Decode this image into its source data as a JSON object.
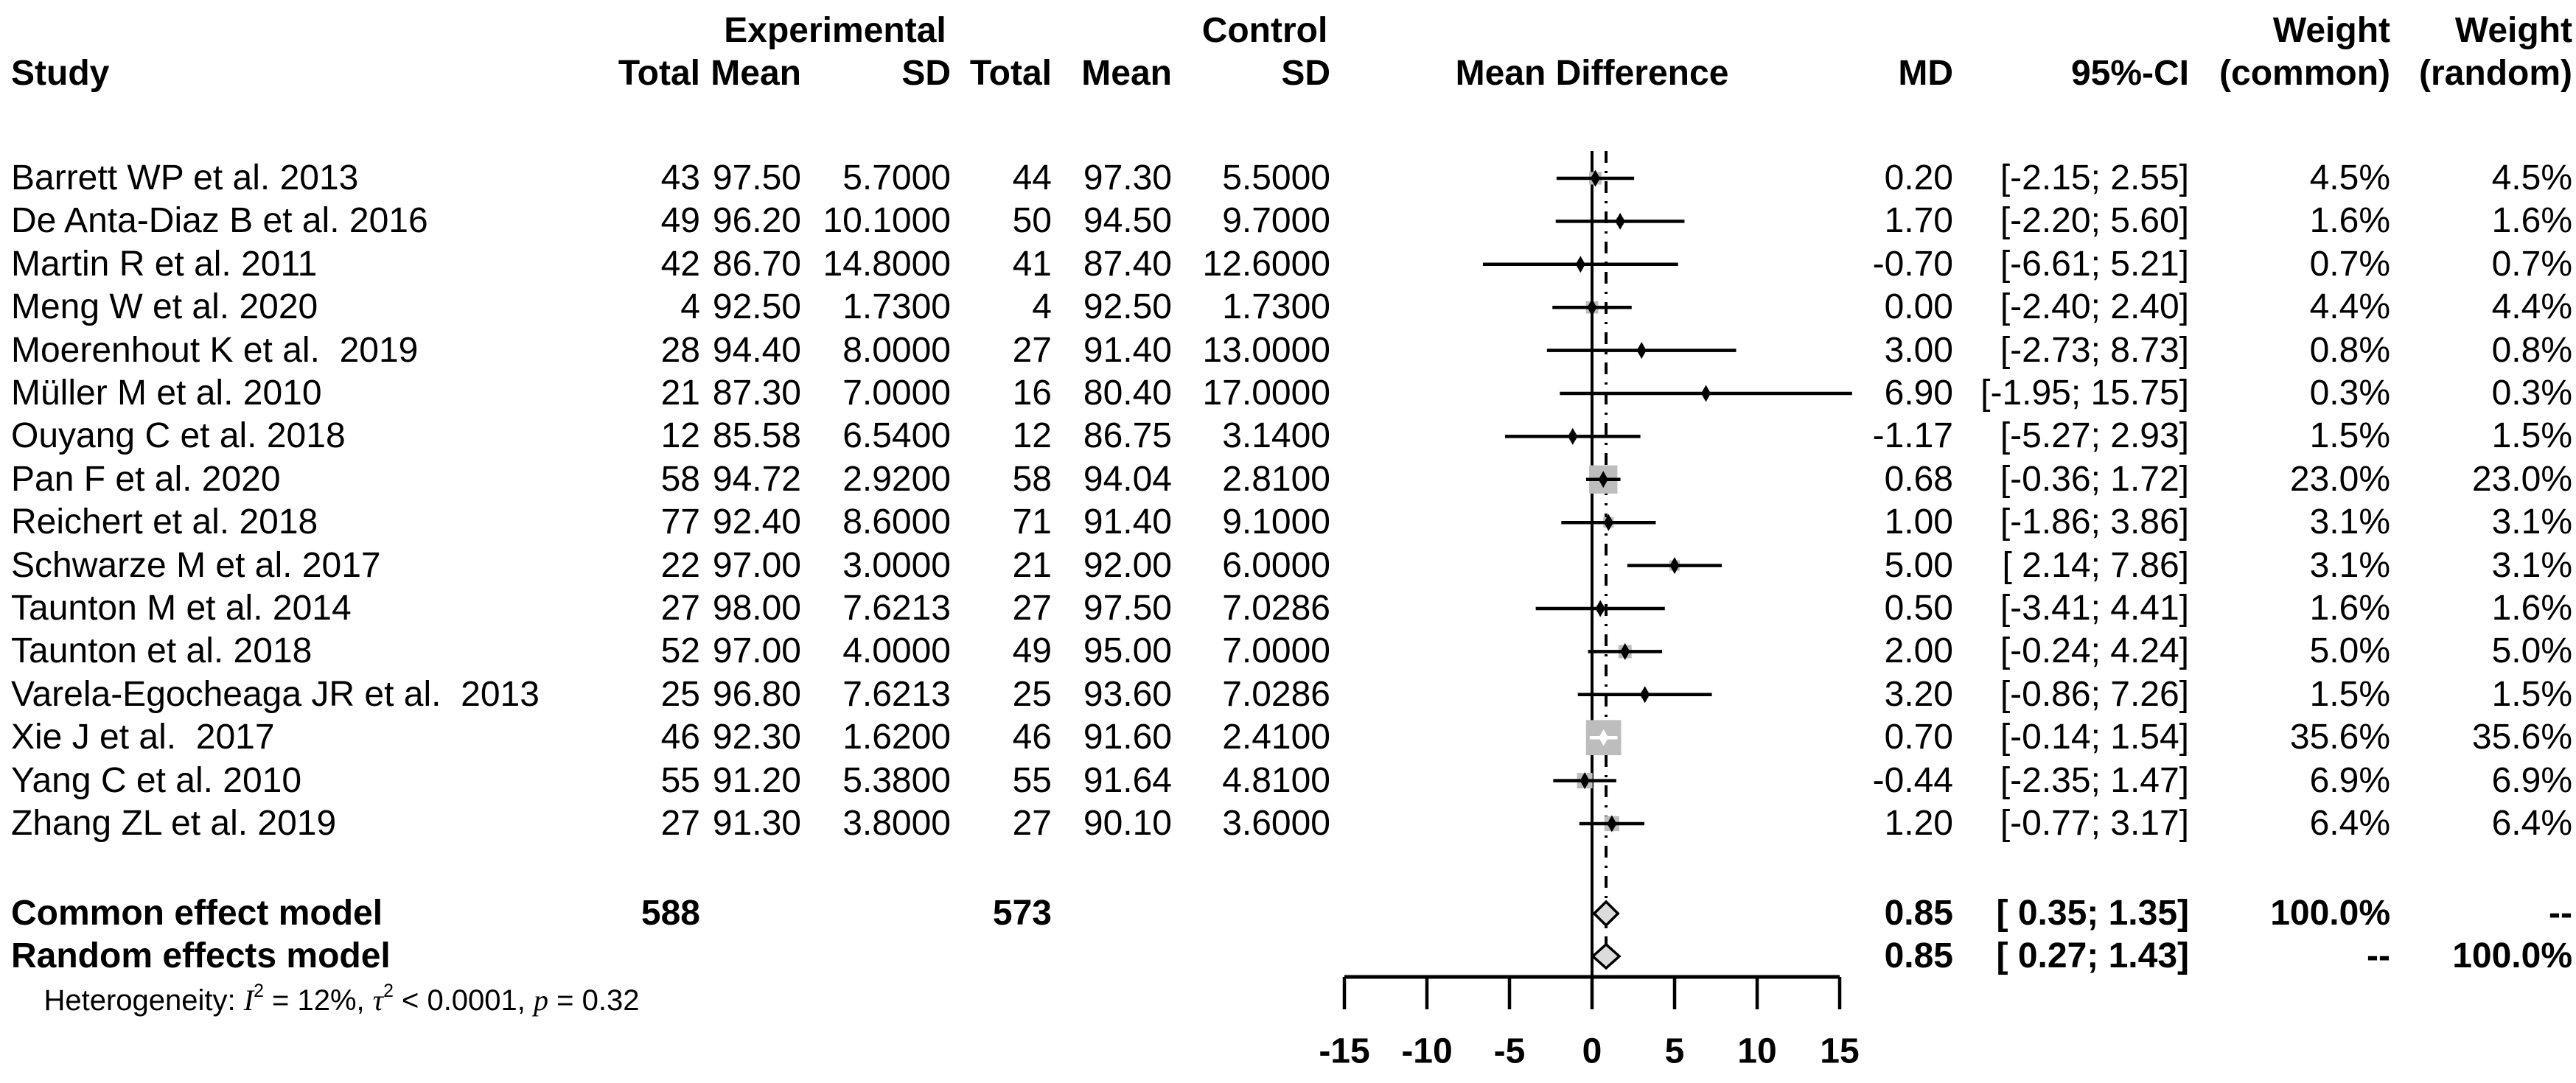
{
  "headers": {
    "study": "Study",
    "experimental": "Experimental",
    "control": "Control",
    "exp_total": "Total",
    "exp_mean": "Mean",
    "exp_sd": "SD",
    "ctrl_total": "Total",
    "ctrl_mean": "Mean",
    "ctrl_sd": "SD",
    "mean_difference": "Mean Difference",
    "md": "MD",
    "ci": "95%-CI",
    "weight_common": "Weight",
    "weight_common_sub": "(common)",
    "weight_random": "Weight",
    "weight_random_sub": "(random)"
  },
  "chart_data": {
    "type": "forest",
    "effect_measure": "Mean Difference",
    "x_axis": {
      "range": [
        -15,
        15
      ],
      "ticks": [
        -15,
        -10,
        -5,
        0,
        5,
        10,
        15
      ],
      "ref_line": 0,
      "overall_line": 0.85
    },
    "studies": [
      {
        "name": "Barrett WP et al. 2013",
        "exp_total": "43",
        "exp_mean": "97.50",
        "exp_sd": "5.7000",
        "ctrl_total": "44",
        "ctrl_mean": "97.30",
        "ctrl_sd": "5.5000",
        "md": 0.2,
        "md_text": "0.20",
        "ci_lo": -2.15,
        "ci_hi": 2.55,
        "ci_text": "[-2.15; 2.55]",
        "w_common": "4.5%",
        "w_random": "4.5%",
        "weight_pct": 4.5
      },
      {
        "name": "De Anta-Diaz B et al. 2016",
        "exp_total": "49",
        "exp_mean": "96.20",
        "exp_sd": "10.1000",
        "ctrl_total": "50",
        "ctrl_mean": "94.50",
        "ctrl_sd": "9.7000",
        "md": 1.7,
        "md_text": "1.70",
        "ci_lo": -2.2,
        "ci_hi": 5.6,
        "ci_text": "[-2.20; 5.60]",
        "w_common": "1.6%",
        "w_random": "1.6%",
        "weight_pct": 1.6
      },
      {
        "name": "Martin R et al. 2011",
        "exp_total": "42",
        "exp_mean": "86.70",
        "exp_sd": "14.8000",
        "ctrl_total": "41",
        "ctrl_mean": "87.40",
        "ctrl_sd": "12.6000",
        "md": -0.7,
        "md_text": "-0.70",
        "ci_lo": -6.61,
        "ci_hi": 5.21,
        "ci_text": "[-6.61; 5.21]",
        "w_common": "0.7%",
        "w_random": "0.7%",
        "weight_pct": 0.7
      },
      {
        "name": "Meng W et al. 2020",
        "exp_total": "4",
        "exp_mean": "92.50",
        "exp_sd": "1.7300",
        "ctrl_total": "4",
        "ctrl_mean": "92.50",
        "ctrl_sd": "1.7300",
        "md": 0.0,
        "md_text": "0.00",
        "ci_lo": -2.4,
        "ci_hi": 2.4,
        "ci_text": "[-2.40; 2.40]",
        "w_common": "4.4%",
        "w_random": "4.4%",
        "weight_pct": 4.4
      },
      {
        "name": "Moerenhout K et al.  2019",
        "exp_total": "28",
        "exp_mean": "94.40",
        "exp_sd": "8.0000",
        "ctrl_total": "27",
        "ctrl_mean": "91.40",
        "ctrl_sd": "13.0000",
        "md": 3.0,
        "md_text": "3.00",
        "ci_lo": -2.73,
        "ci_hi": 8.73,
        "ci_text": "[-2.73; 8.73]",
        "w_common": "0.8%",
        "w_random": "0.8%",
        "weight_pct": 0.8
      },
      {
        "name": "Müller M et al. 2010",
        "exp_total": "21",
        "exp_mean": "87.30",
        "exp_sd": "7.0000",
        "ctrl_total": "16",
        "ctrl_mean": "80.40",
        "ctrl_sd": "17.0000",
        "md": 6.9,
        "md_text": "6.90",
        "ci_lo": -1.95,
        "ci_hi": 15.75,
        "ci_text": "[-1.95; 15.75]",
        "w_common": "0.3%",
        "w_random": "0.3%",
        "weight_pct": 0.3
      },
      {
        "name": "Ouyang C et al. 2018",
        "exp_total": "12",
        "exp_mean": "85.58",
        "exp_sd": "6.5400",
        "ctrl_total": "12",
        "ctrl_mean": "86.75",
        "ctrl_sd": "3.1400",
        "md": -1.17,
        "md_text": "-1.17",
        "ci_lo": -5.27,
        "ci_hi": 2.93,
        "ci_text": "[-5.27; 2.93]",
        "w_common": "1.5%",
        "w_random": "1.5%",
        "weight_pct": 1.5
      },
      {
        "name": "Pan F et al. 2020",
        "exp_total": "58",
        "exp_mean": "94.72",
        "exp_sd": "2.9200",
        "ctrl_total": "58",
        "ctrl_mean": "94.04",
        "ctrl_sd": "2.8100",
        "md": 0.68,
        "md_text": "0.68",
        "ci_lo": -0.36,
        "ci_hi": 1.72,
        "ci_text": "[-0.36; 1.72]",
        "w_common": "23.0%",
        "w_random": "23.0%",
        "weight_pct": 23.0
      },
      {
        "name": "Reichert et al. 2018",
        "exp_total": "77",
        "exp_mean": "92.40",
        "exp_sd": "8.6000",
        "ctrl_total": "71",
        "ctrl_mean": "91.40",
        "ctrl_sd": "9.1000",
        "md": 1.0,
        "md_text": "1.00",
        "ci_lo": -1.86,
        "ci_hi": 3.86,
        "ci_text": "[-1.86; 3.86]",
        "w_common": "3.1%",
        "w_random": "3.1%",
        "weight_pct": 3.1
      },
      {
        "name": "Schwarze M et al. 2017",
        "exp_total": "22",
        "exp_mean": "97.00",
        "exp_sd": "3.0000",
        "ctrl_total": "21",
        "ctrl_mean": "92.00",
        "ctrl_sd": "6.0000",
        "md": 5.0,
        "md_text": "5.00",
        "ci_lo": 2.14,
        "ci_hi": 7.86,
        "ci_text": "[ 2.14; 7.86]",
        "w_common": "3.1%",
        "w_random": "3.1%",
        "weight_pct": 3.1
      },
      {
        "name": "Taunton M et al. 2014",
        "exp_total": "27",
        "exp_mean": "98.00",
        "exp_sd": "7.6213",
        "ctrl_total": "27",
        "ctrl_mean": "97.50",
        "ctrl_sd": "7.0286",
        "md": 0.5,
        "md_text": "0.50",
        "ci_lo": -3.41,
        "ci_hi": 4.41,
        "ci_text": "[-3.41; 4.41]",
        "w_common": "1.6%",
        "w_random": "1.6%",
        "weight_pct": 1.6
      },
      {
        "name": "Taunton et al. 2018",
        "exp_total": "52",
        "exp_mean": "97.00",
        "exp_sd": "4.0000",
        "ctrl_total": "49",
        "ctrl_mean": "95.00",
        "ctrl_sd": "7.0000",
        "md": 2.0,
        "md_text": "2.00",
        "ci_lo": -0.24,
        "ci_hi": 4.24,
        "ci_text": "[-0.24; 4.24]",
        "w_common": "5.0%",
        "w_random": "5.0%",
        "weight_pct": 5.0
      },
      {
        "name": "Varela-Egocheaga JR et al.  2013",
        "exp_total": "25",
        "exp_mean": "96.80",
        "exp_sd": "7.6213",
        "ctrl_total": "25",
        "ctrl_mean": "93.60",
        "ctrl_sd": "7.0286",
        "md": 3.2,
        "md_text": "3.20",
        "ci_lo": -0.86,
        "ci_hi": 7.26,
        "ci_text": "[-0.86; 7.26]",
        "w_common": "1.5%",
        "w_random": "1.5%",
        "weight_pct": 1.5
      },
      {
        "name": "Xie J et al.  2017",
        "exp_total": "46",
        "exp_mean": "92.30",
        "exp_sd": "1.6200",
        "ctrl_total": "46",
        "ctrl_mean": "91.60",
        "ctrl_sd": "2.4100",
        "md": 0.7,
        "md_text": "0.70",
        "ci_lo": -0.14,
        "ci_hi": 1.54,
        "ci_text": "[-0.14; 1.54]",
        "w_common": "35.6%",
        "w_random": "35.6%",
        "weight_pct": 35.6
      },
      {
        "name": "Yang C et al. 2010",
        "exp_total": "55",
        "exp_mean": "91.20",
        "exp_sd": "5.3800",
        "ctrl_total": "55",
        "ctrl_mean": "91.64",
        "ctrl_sd": "4.8100",
        "md": -0.44,
        "md_text": "-0.44",
        "ci_lo": -2.35,
        "ci_hi": 1.47,
        "ci_text": "[-2.35; 1.47]",
        "w_common": "6.9%",
        "w_random": "6.9%",
        "weight_pct": 6.9
      },
      {
        "name": "Zhang ZL et al. 2019",
        "exp_total": "27",
        "exp_mean": "91.30",
        "exp_sd": "3.8000",
        "ctrl_total": "27",
        "ctrl_mean": "90.10",
        "ctrl_sd": "3.6000",
        "md": 1.2,
        "md_text": "1.20",
        "ci_lo": -0.77,
        "ci_hi": 3.17,
        "ci_text": "[-0.77; 3.17]",
        "w_common": "6.4%",
        "w_random": "6.4%",
        "weight_pct": 6.4
      }
    ],
    "common_effect": {
      "label": "Common effect model",
      "exp_total": "588",
      "ctrl_total": "573",
      "md": 0.85,
      "md_text": "0.85",
      "ci_lo": 0.35,
      "ci_hi": 1.35,
      "ci_text": "[ 0.35; 1.35]",
      "w_common": "100.0%",
      "w_random": "--"
    },
    "random_effects": {
      "label": "Random effects model",
      "md": 0.85,
      "md_text": "0.85",
      "ci_lo": 0.27,
      "ci_hi": 1.43,
      "ci_text": "[ 0.27; 1.43]",
      "w_common": "--",
      "w_random": "100.0%"
    },
    "heterogeneity": {
      "prefix": "Heterogeneity: ",
      "i": "I",
      "i_sup": "2",
      "seg1": " = 12%, ",
      "tau": "τ",
      "tau_sup": "2",
      "seg2": " < 0.0001, ",
      "p": "p",
      "seg3": " = 0.32"
    },
    "colors": {
      "square": "#bdbdbd",
      "square_light": "#d4d4d4",
      "diamond_fill": "#dcdcdc",
      "line": "#000000"
    }
  }
}
